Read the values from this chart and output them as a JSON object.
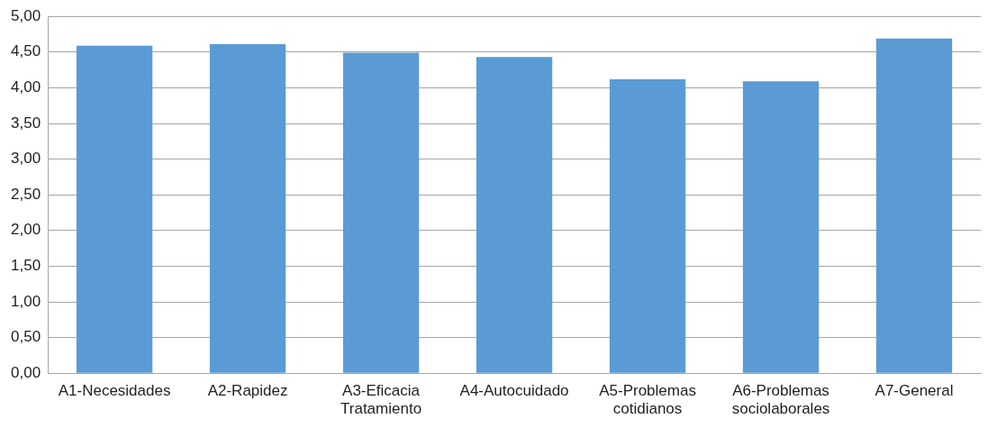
{
  "chart_data": {
    "type": "bar",
    "categories": [
      "A1-Necesidades",
      "A2-Rapidez",
      "A3-Eficacia Tratamiento",
      "A4-Autocuidado",
      "A5-Problemas cotidianos",
      "A6-Problemas sociolaborales",
      "A7-General"
    ],
    "values": [
      4.59,
      4.61,
      4.49,
      4.43,
      4.12,
      4.09,
      4.69
    ],
    "color": "#5b9bd5",
    "ylim": [
      0,
      5
    ],
    "yticks": [
      {
        "value": 0,
        "label": "0,00"
      },
      {
        "value": 0.5,
        "label": "0,50"
      },
      {
        "value": 1,
        "label": "1,00"
      },
      {
        "value": 1.5,
        "label": "1,50"
      },
      {
        "value": 2,
        "label": "2,00"
      },
      {
        "value": 2.5,
        "label": "2,50"
      },
      {
        "value": 3,
        "label": "3,00"
      },
      {
        "value": 3.5,
        "label": "3,50"
      },
      {
        "value": 4,
        "label": "4,00"
      },
      {
        "value": 4.5,
        "label": "4,50"
      },
      {
        "value": 5,
        "label": "5,00"
      }
    ],
    "grid": "y",
    "legend": false
  }
}
